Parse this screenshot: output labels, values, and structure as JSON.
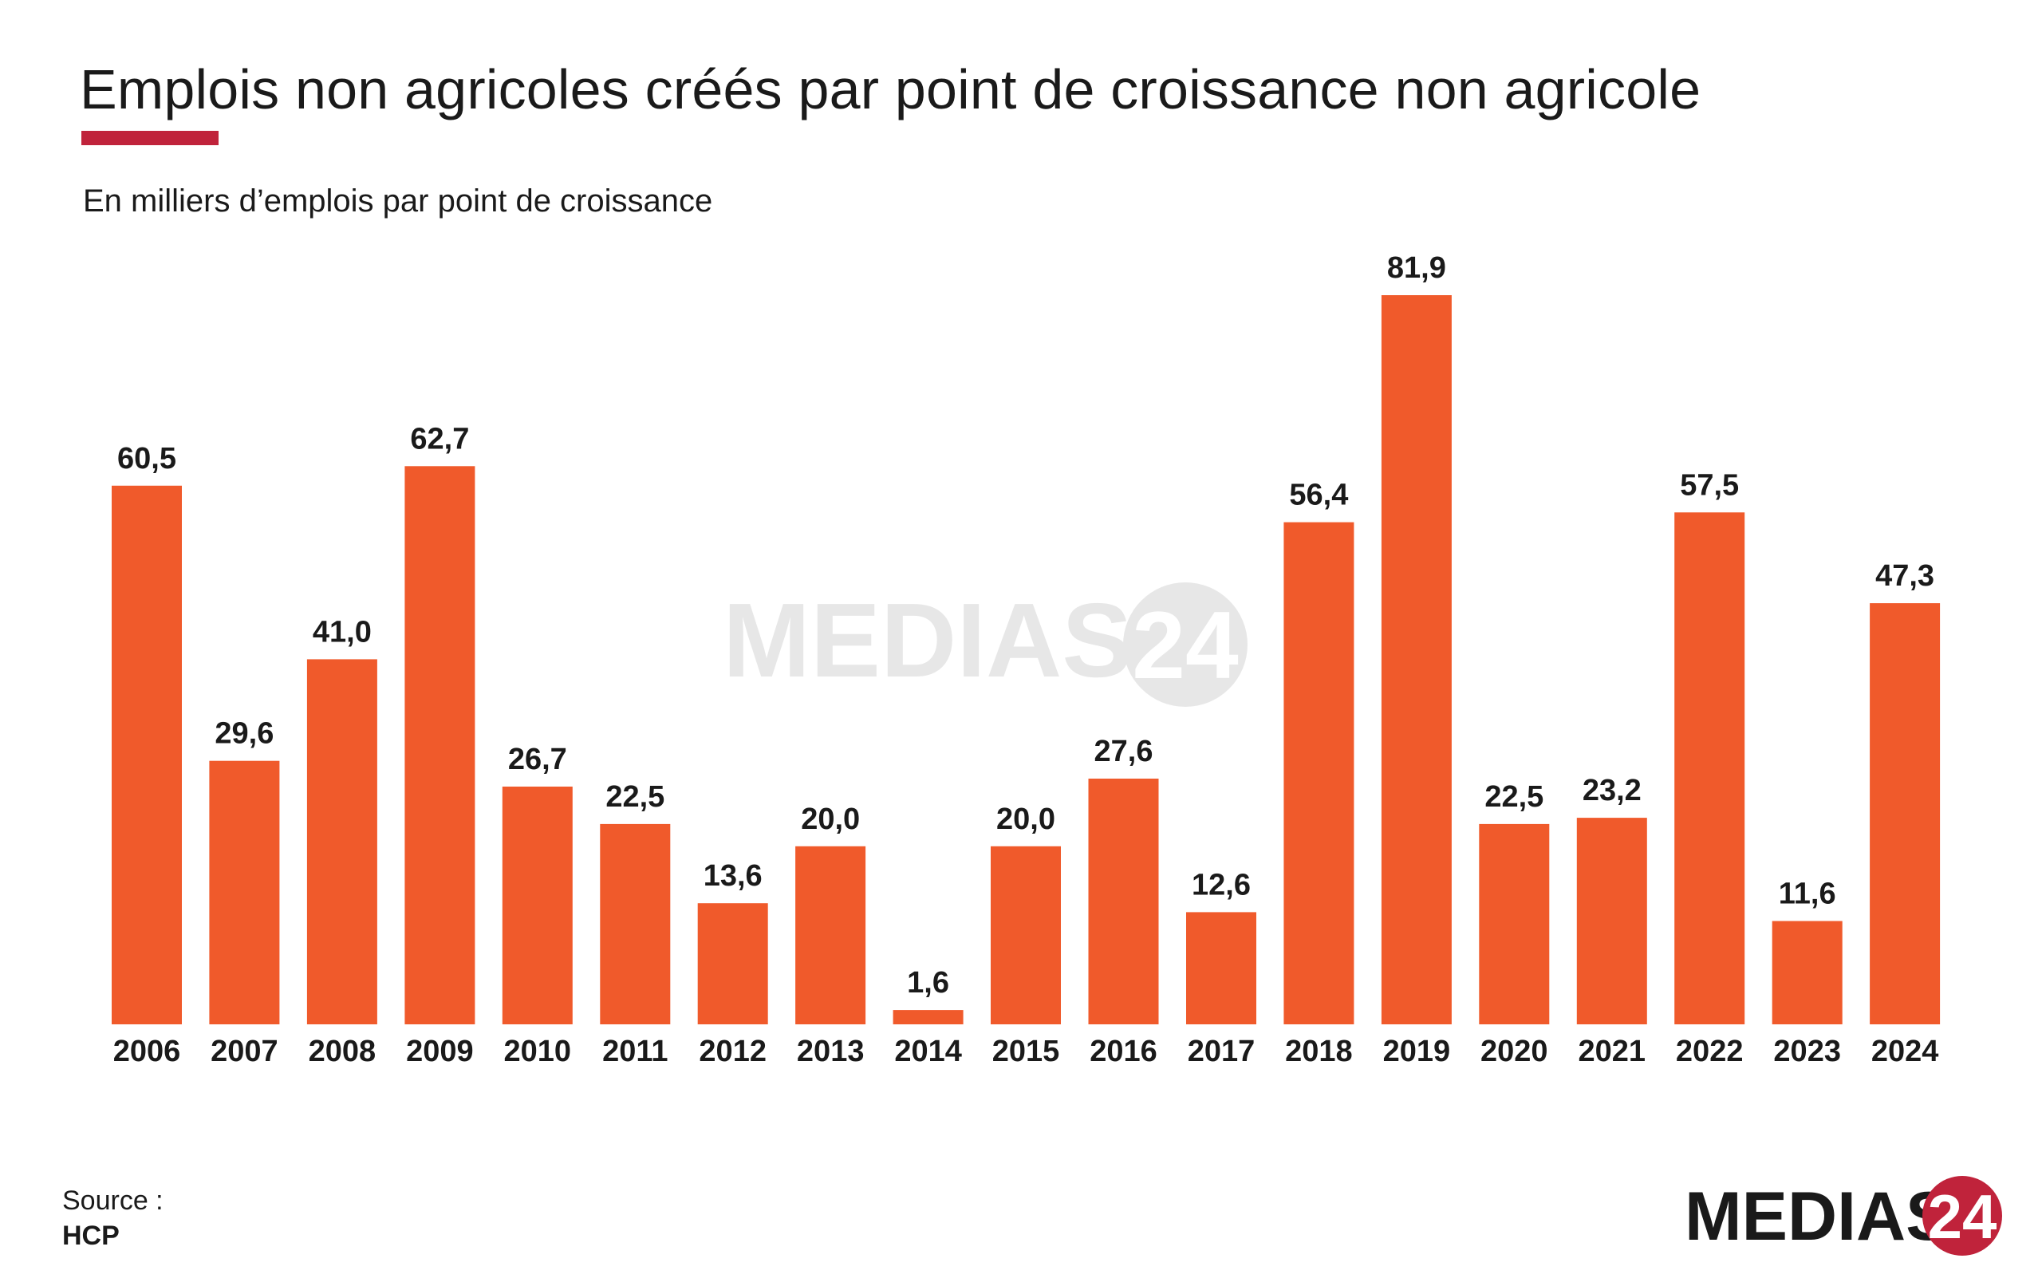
{
  "title": "Emplois non agricoles créés par point de croissance non agricole",
  "subtitle": "En milliers d’emplois par point de croissance",
  "source": {
    "label": "Source :",
    "value": "HCP"
  },
  "brand": {
    "text": "MEDIAS",
    "number": "24"
  },
  "colors": {
    "bar": "#f05a2b",
    "accent": "#c0233b",
    "text": "#1a1a1a"
  },
  "chart_data": {
    "type": "bar",
    "title": "Emplois non agricoles créés par point de croissance non agricole",
    "subtitle": "En milliers d’emplois par point de croissance",
    "xlabel": "",
    "ylabel": "",
    "ylim": [
      0,
      81.9
    ],
    "grid": false,
    "legend": "none",
    "categories": [
      "2006",
      "2007",
      "2008",
      "2009",
      "2010",
      "2011",
      "2012",
      "2013",
      "2014",
      "2015",
      "2016",
      "2017",
      "2018",
      "2019",
      "2020",
      "2021",
      "2022",
      "2023",
      "2024"
    ],
    "values": [
      60.5,
      29.6,
      41.0,
      62.7,
      26.7,
      22.5,
      13.6,
      20.0,
      1.6,
      20.0,
      27.6,
      12.6,
      56.4,
      81.9,
      22.5,
      23.2,
      57.5,
      11.6,
      47.3
    ],
    "value_labels": [
      "60,5",
      "29,6",
      "41,0",
      "62,7",
      "26,7",
      "22,5",
      "13,6",
      "20,0",
      "1,6",
      "20,0",
      "27,6",
      "12,6",
      "56,4",
      "81,9",
      "22,5",
      "23,2",
      "57,5",
      "11,6",
      "47,3"
    ]
  }
}
